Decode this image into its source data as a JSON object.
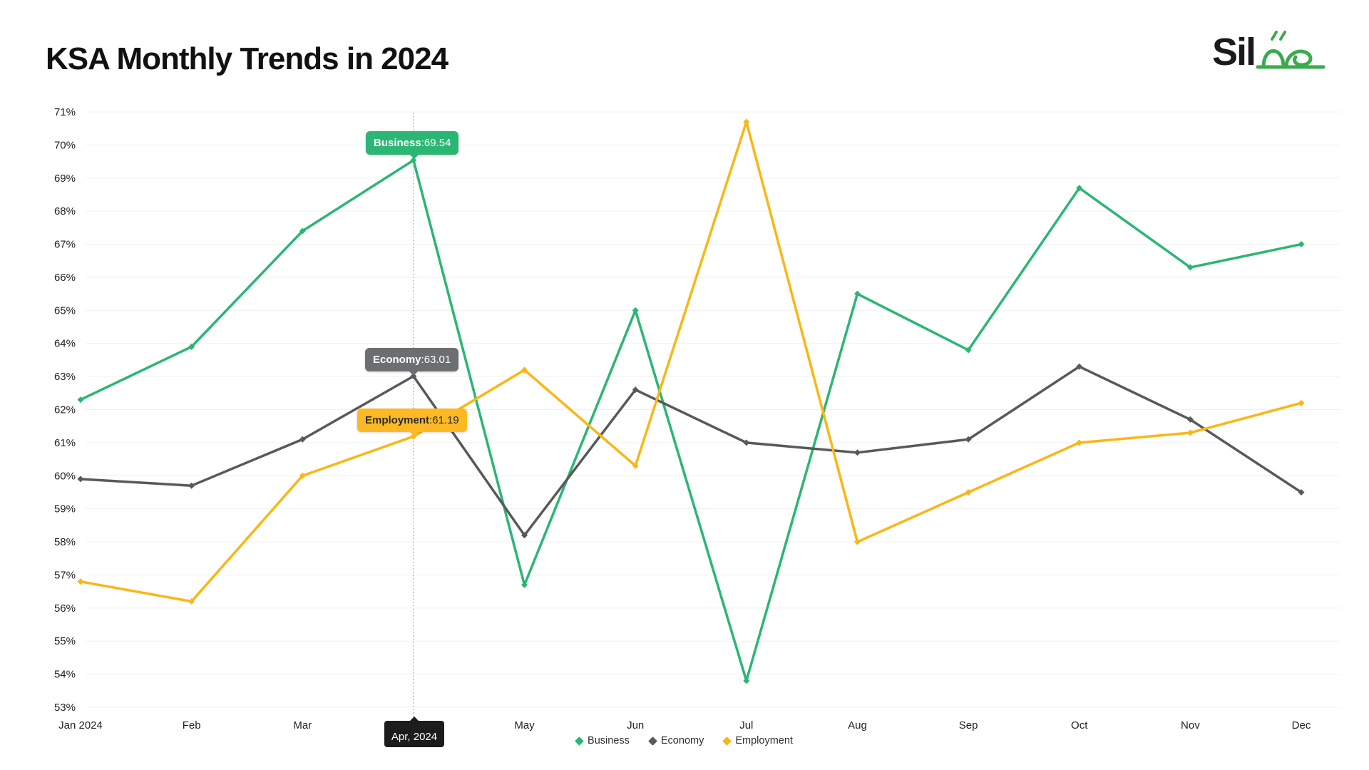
{
  "header": {
    "title": "KSA Monthly Trends in 2024",
    "logo": {
      "latin": "Sil",
      "arabic": "صلة",
      "brand_black": "#1a1a1a",
      "brand_green": "#2bb673"
    }
  },
  "chart_data": {
    "type": "line",
    "title": "KSA Monthly Trends in 2024",
    "categories": [
      "Jan 2024",
      "Feb",
      "Mar",
      "Apr",
      "May",
      "Jun",
      "Jul",
      "Aug",
      "Sep",
      "Oct",
      "Nov",
      "Dec"
    ],
    "series": [
      {
        "name": "Business",
        "color": "#2bb673",
        "values": [
          62.3,
          63.9,
          67.4,
          69.54,
          56.7,
          65.0,
          53.8,
          65.5,
          63.8,
          68.7,
          66.3,
          67.0
        ]
      },
      {
        "name": "Economy",
        "color": "#58595b",
        "values": [
          59.9,
          59.7,
          61.1,
          63.01,
          58.2,
          62.6,
          61.0,
          60.7,
          61.1,
          63.3,
          61.7,
          59.5
        ]
      },
      {
        "name": "Employment",
        "color": "#fbb615",
        "values": [
          56.8,
          56.2,
          60.0,
          61.19,
          63.2,
          60.3,
          70.7,
          58.0,
          59.5,
          61.0,
          61.3,
          62.2
        ]
      }
    ],
    "ylim": [
      53,
      71
    ],
    "ytick_step": 1,
    "ytick_suffix": "%",
    "grid": "horizontal-faint",
    "legend_position": "bottom-center",
    "legend": [
      "Business",
      "Economy",
      "Employment"
    ],
    "highlight": {
      "category_index": 3,
      "axis_label": "Apr, 2024",
      "tooltips": [
        {
          "series": "Business",
          "colon": ": ",
          "value": "69.54",
          "bg": "#2bb673",
          "text": "#ffffff"
        },
        {
          "series": "Economy",
          "colon": ": ",
          "value": "63.01",
          "bg": "#6d6e71",
          "text": "#ffffff"
        },
        {
          "series": "Employment",
          "colon": ": ",
          "value": "61.19",
          "bg": "#fdb924",
          "text": "#2b2b2b"
        }
      ]
    },
    "colors": {
      "axis_text": "#1f1f1f",
      "grid_line": "#f0f0f0",
      "dashed_line": "#979797",
      "highlight_box_bg": "#1c1c1c",
      "highlight_box_text": "#ffffff"
    }
  }
}
